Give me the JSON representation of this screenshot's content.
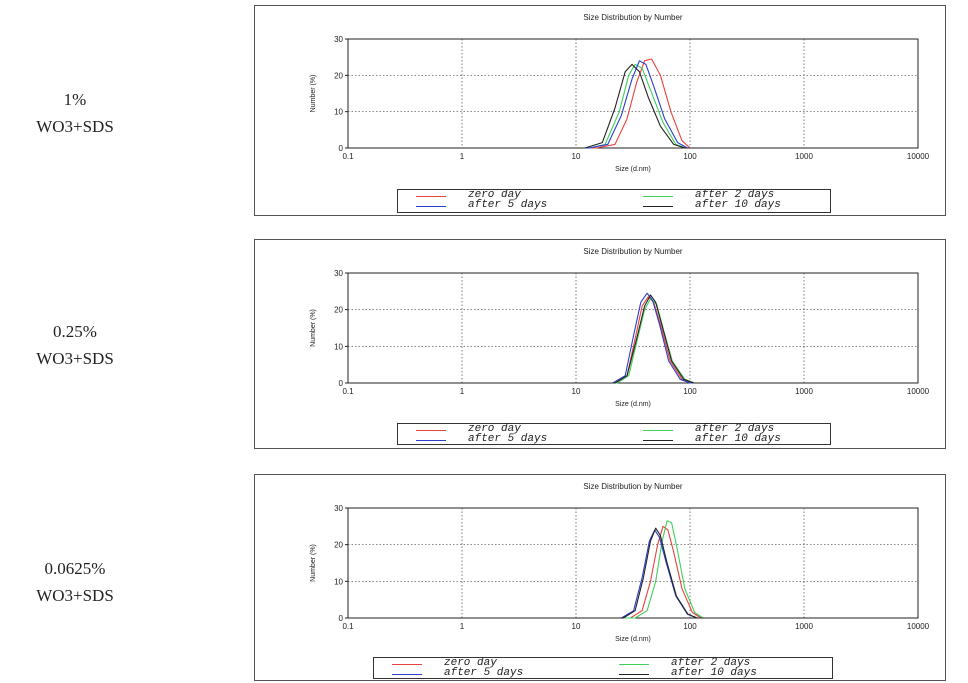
{
  "chart_data": [
    {
      "type": "line",
      "row_label": [
        "1%",
        "WO3+SDS"
      ],
      "title": "Size Distribution by Number",
      "xlabel": "Size (d.nm)",
      "ylabel": "Number (%)",
      "xscale": "log",
      "xlim": [
        0.1,
        10000
      ],
      "ylim": [
        0,
        30
      ],
      "xticks": [
        "0.1",
        "1",
        "10",
        "100",
        "1000",
        "10000"
      ],
      "yticks": [
        "0",
        "10",
        "20",
        "30"
      ],
      "grid": true,
      "legend_position": "bottom",
      "series": [
        {
          "name": "zero day",
          "color": "#e8423f",
          "x": [
            15,
            22,
            28,
            34,
            40,
            46,
            55,
            68,
            85,
            100
          ],
          "y": [
            0,
            1,
            8,
            18,
            24,
            24.5,
            20,
            10,
            2,
            0
          ]
        },
        {
          "name": "after 2 days",
          "color": "#3fcf5a",
          "x": [
            13,
            18,
            24,
            29,
            33,
            38,
            45,
            58,
            75,
            92
          ],
          "y": [
            0,
            1,
            10,
            20,
            23,
            22,
            16,
            7,
            1,
            0
          ]
        },
        {
          "name": "after 5 days",
          "color": "#2a3fcf",
          "x": [
            13,
            19,
            25,
            31,
            36,
            41,
            48,
            60,
            78,
            95
          ],
          "y": [
            0,
            1,
            9,
            19,
            24,
            23,
            17,
            8,
            1.5,
            0
          ]
        },
        {
          "name": "after 10 days",
          "color": "#222222",
          "x": [
            12,
            17,
            22,
            27,
            31,
            36,
            43,
            55,
            72,
            90
          ],
          "y": [
            0,
            1.5,
            11,
            21,
            23,
            21,
            14,
            6,
            1,
            0
          ]
        }
      ]
    },
    {
      "type": "line",
      "row_label": [
        "0.25%",
        "WO3+SDS"
      ],
      "title": "Size Distribution by Number",
      "xlabel": "Size (d.nm)",
      "ylabel": "Number (%)",
      "xscale": "log",
      "xlim": [
        0.1,
        10000
      ],
      "ylim": [
        0,
        30
      ],
      "xticks": [
        "0.1",
        "1",
        "10",
        "100",
        "1000",
        "10000"
      ],
      "yticks": [
        "0",
        "10",
        "20",
        "30"
      ],
      "grid": true,
      "legend_position": "bottom",
      "series": [
        {
          "name": "zero day",
          "color": "#e8423f",
          "x": [
            22,
            28,
            33,
            38,
            43,
            48,
            55,
            67,
            85,
            105
          ],
          "y": [
            0,
            2,
            12,
            21,
            23.5,
            22,
            16,
            6,
            1,
            0
          ]
        },
        {
          "name": "after 2 days",
          "color": "#3fcf5a",
          "x": [
            23,
            29,
            34,
            40,
            45,
            51,
            58,
            70,
            90,
            110
          ],
          "y": [
            0,
            2,
            11,
            20,
            23,
            21.5,
            15,
            6,
            1,
            0
          ]
        },
        {
          "name": "after 5 days",
          "color": "#2a3fcf",
          "x": [
            21,
            27,
            32,
            37,
            42,
            47,
            54,
            65,
            82,
            100
          ],
          "y": [
            0,
            2,
            13,
            22,
            24.5,
            22.5,
            16,
            6,
            1,
            0
          ]
        },
        {
          "name": "after 10 days",
          "color": "#222222",
          "x": [
            22,
            28,
            34,
            40,
            45,
            50,
            57,
            69,
            88,
            108
          ],
          "y": [
            0,
            2,
            12,
            21,
            24,
            22,
            15.5,
            6,
            1,
            0
          ]
        }
      ]
    },
    {
      "type": "line",
      "row_label": [
        "0.0625%",
        "WO3+SDS"
      ],
      "title": "Size Distribution by Number",
      "xlabel": "Size (d.nm)",
      "ylabel": "Number (%)",
      "xscale": "log",
      "xlim": [
        0.1,
        10000
      ],
      "ylim": [
        0,
        30
      ],
      "xticks": [
        "0.1",
        "1",
        "10",
        "100",
        "1000",
        "10000"
      ],
      "yticks": [
        "0",
        "10",
        "20",
        "30"
      ],
      "grid": true,
      "legend_position": "bottom",
      "series": [
        {
          "name": "zero day",
          "color": "#e8423f",
          "x": [
            30,
            38,
            45,
            52,
            58,
            64,
            72,
            85,
            105,
            125
          ],
          "y": [
            0,
            2,
            10,
            20,
            25,
            24,
            18,
            8,
            1.5,
            0
          ]
        },
        {
          "name": "after 2 days",
          "color": "#3fcf5a",
          "x": [
            33,
            42,
            50,
            57,
            63,
            69,
            77,
            90,
            110,
            130
          ],
          "y": [
            0,
            2,
            10,
            21,
            26.5,
            26,
            19,
            8,
            1.5,
            0
          ]
        },
        {
          "name": "after 5 days",
          "color": "#2a3fcf",
          "x": [
            25,
            32,
            38,
            44,
            49,
            54,
            62,
            75,
            95,
            115
          ],
          "y": [
            0,
            2,
            11,
            21,
            24,
            22,
            15,
            6,
            1,
            0
          ]
        },
        {
          "name": "after 10 days",
          "color": "#222222",
          "x": [
            26,
            33,
            39,
            45,
            50,
            55,
            63,
            76,
            96,
            116
          ],
          "y": [
            0,
            2,
            11,
            21,
            24.5,
            22.5,
            15,
            6,
            1,
            0
          ]
        }
      ]
    }
  ]
}
